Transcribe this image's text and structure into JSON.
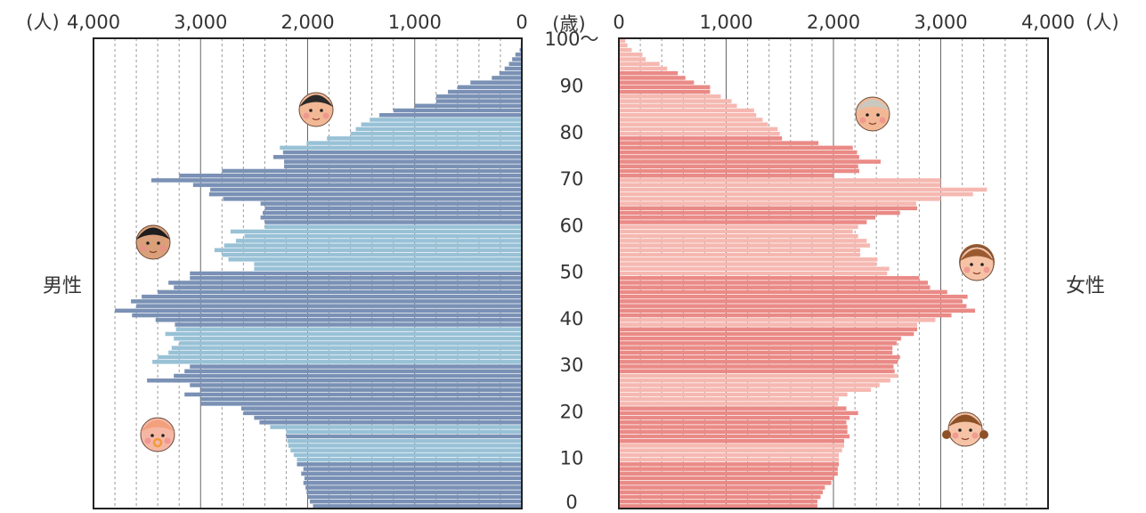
{
  "chart_data": {
    "type": "bar",
    "subtype": "population-pyramid",
    "xlabel_unit": "(人)",
    "age_unit": "(歳)",
    "age_ticks": [
      "0",
      "10",
      "20",
      "30",
      "40",
      "50",
      "60",
      "70",
      "80",
      "90",
      "100〜"
    ],
    "value_ticks": [
      "0",
      "1,000",
      "2,000",
      "3,000",
      "4,000"
    ],
    "xlim": [
      0,
      4000
    ],
    "grid": true,
    "colors": {
      "male_dark": "#7a91b5",
      "male_light": "#98c1d6",
      "female_light": "#f5b8b1",
      "female_dark": "#ea8a86"
    },
    "series": [
      {
        "name": "男性",
        "values": [
          1950,
          1980,
          2000,
          2010,
          2020,
          2040,
          2030,
          2060,
          2040,
          2100,
          2100,
          2130,
          2160,
          2180,
          2190,
          2200,
          2200,
          2350,
          2450,
          2500,
          2600,
          2620,
          3000,
          3000,
          3150,
          3000,
          3100,
          3500,
          3250,
          3150,
          3100,
          3450,
          3400,
          3300,
          3270,
          3200,
          3250,
          3330,
          3230,
          3240,
          3420,
          3640,
          3800,
          3600,
          3650,
          3550,
          3400,
          3250,
          3300,
          3100,
          3100,
          2500,
          2500,
          2740,
          2800,
          2870,
          2780,
          2670,
          2590,
          2720,
          2400,
          2400,
          2440,
          2420,
          2400,
          2440,
          2790,
          2920,
          2910,
          3070,
          3460,
          3200,
          2800,
          2220,
          2220,
          2320,
          2230,
          2260,
          2010,
          1820,
          1600,
          1550,
          1500,
          1420,
          1330,
          1200,
          1000,
          800,
          800,
          690,
          600,
          480,
          280,
          210,
          160,
          120,
          90,
          60,
          20,
          10,
          5
        ]
      },
      {
        "name": "女性",
        "values": [
          1850,
          1850,
          1880,
          1900,
          1920,
          1980,
          2000,
          2040,
          2040,
          2050,
          2050,
          2050,
          2080,
          2100,
          2100,
          2150,
          2130,
          2130,
          2120,
          2150,
          2230,
          2120,
          2040,
          2050,
          2130,
          2350,
          2430,
          2530,
          2600,
          2570,
          2560,
          2600,
          2620,
          2550,
          2550,
          2590,
          2630,
          2750,
          2780,
          2780,
          2950,
          3100,
          3320,
          3240,
          3200,
          3250,
          3060,
          2900,
          2880,
          2800,
          2500,
          2520,
          2400,
          2410,
          2250,
          2250,
          2340,
          2310,
          2230,
          2180,
          2230,
          2310,
          2390,
          2620,
          2780,
          2770,
          3000,
          3300,
          3430,
          3000,
          3000,
          2000,
          2240,
          2230,
          2440,
          2240,
          2220,
          2180,
          1860,
          1520,
          1500,
          1480,
          1390,
          1340,
          1280,
          1260,
          1100,
          1050,
          950,
          850,
          850,
          700,
          620,
          550,
          450,
          380,
          250,
          220,
          120,
          80,
          60
        ]
      }
    ]
  },
  "labels": {
    "male": "男性",
    "female": "女性"
  }
}
